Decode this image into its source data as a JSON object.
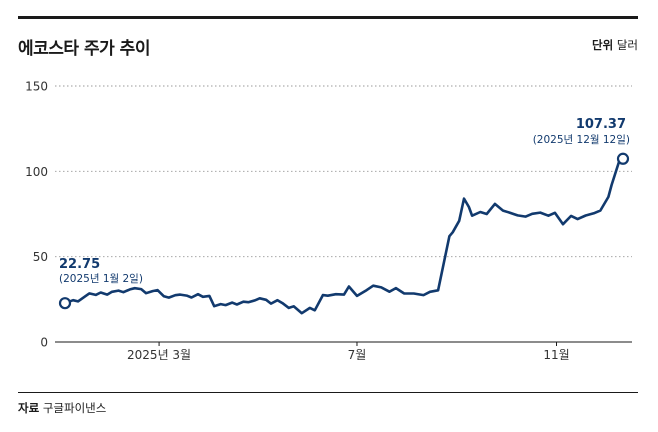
{
  "header": {
    "title": "에코스타 주가 추이",
    "unit_label": "단위",
    "unit_value": "달러"
  },
  "footer": {
    "source_label": "자료",
    "source_value": "구글파이낸스"
  },
  "colors": {
    "line": "#123a6e",
    "grid": "#9a9a9a",
    "axis": "#1a1a1a"
  },
  "chart_data": {
    "type": "line",
    "title": "에코스타 주가 추이",
    "xlabel": "",
    "ylabel": "",
    "ylim": [
      0,
      150
    ],
    "yticks": [
      "0",
      "50",
      "100",
      "150"
    ],
    "xticks": [
      {
        "label": "2025년 3월",
        "date": "2025-03-01"
      },
      {
        "label": "7월",
        "date": "2025-07-01"
      },
      {
        "label": "11월",
        "date": "2025-11-01"
      }
    ],
    "grid": true,
    "series": [
      {
        "x": [
          "2025-01-02",
          "2025-01-07",
          "2025-01-10",
          "2025-01-14",
          "2025-01-17",
          "2025-01-21",
          "2025-01-24",
          "2025-01-28",
          "2025-01-31",
          "2025-02-04",
          "2025-02-07",
          "2025-02-11",
          "2025-02-14",
          "2025-02-18",
          "2025-02-21",
          "2025-02-25",
          "2025-02-28",
          "2025-03-04",
          "2025-03-07",
          "2025-03-11",
          "2025-03-14",
          "2025-03-18",
          "2025-03-21",
          "2025-03-25",
          "2025-03-28",
          "2025-04-01",
          "2025-04-04",
          "2025-04-08",
          "2025-04-11",
          "2025-04-15",
          "2025-04-18",
          "2025-04-22",
          "2025-04-25",
          "2025-04-29",
          "2025-05-02",
          "2025-05-06",
          "2025-05-09",
          "2025-05-13",
          "2025-05-16",
          "2025-05-20",
          "2025-05-23",
          "2025-05-28",
          "2025-06-02",
          "2025-06-05",
          "2025-06-10",
          "2025-06-13",
          "2025-06-18",
          "2025-06-23",
          "2025-06-26",
          "2025-07-01",
          "2025-07-07",
          "2025-07-11",
          "2025-07-16",
          "2025-07-21",
          "2025-07-25",
          "2025-07-30",
          "2025-08-05",
          "2025-08-11",
          "2025-08-15",
          "2025-08-20",
          "2025-08-25",
          "2025-08-27",
          "2025-08-29",
          "2025-09-02",
          "2025-09-05",
          "2025-09-08",
          "2025-09-10",
          "2025-09-15",
          "2025-09-19",
          "2025-09-24",
          "2025-09-29",
          "2025-10-03",
          "2025-10-08",
          "2025-10-13",
          "2025-10-17",
          "2025-10-22",
          "2025-10-27",
          "2025-10-31",
          "2025-11-05",
          "2025-11-10",
          "2025-11-14",
          "2025-11-19",
          "2025-11-24",
          "2025-11-28",
          "2025-12-03",
          "2025-12-05",
          "2025-12-08",
          "2025-12-10",
          "2025-12-12"
        ],
        "values": [
          22.75,
          24.5,
          23.8,
          26.5,
          28.5,
          27.6,
          29.0,
          27.8,
          29.4,
          30.1,
          29.2,
          30.8,
          31.5,
          31.0,
          28.6,
          29.8,
          30.4,
          26.8,
          26.0,
          27.4,
          27.8,
          27.2,
          26.1,
          28.0,
          26.5,
          27.0,
          21.0,
          22.2,
          21.6,
          23.1,
          22.0,
          23.6,
          23.3,
          24.4,
          25.6,
          24.7,
          22.5,
          24.5,
          22.8,
          20.0,
          20.9,
          16.9,
          20.0,
          18.6,
          27.5,
          27.1,
          28.0,
          27.8,
          32.5,
          27.0,
          30.4,
          33.0,
          32.0,
          29.5,
          31.6,
          28.5,
          28.4,
          27.5,
          29.4,
          30.3,
          53.0,
          62.0,
          64.3,
          71.0,
          84.0,
          79.1,
          74.0,
          76.2,
          75.0,
          80.9,
          77.0,
          75.8,
          74.2,
          73.5,
          75.1,
          75.8,
          74.0,
          75.7,
          69.0,
          73.9,
          72.0,
          74.1,
          75.4,
          77.0,
          85.0,
          92.0,
          101.0,
          107.0,
          107.37
        ]
      }
    ],
    "annotations": [
      {
        "value": "22.75",
        "date_label": "(2025년 1월 2일)"
      },
      {
        "value": "107.37",
        "date_label": "(2025년 12월 12일)"
      }
    ]
  }
}
